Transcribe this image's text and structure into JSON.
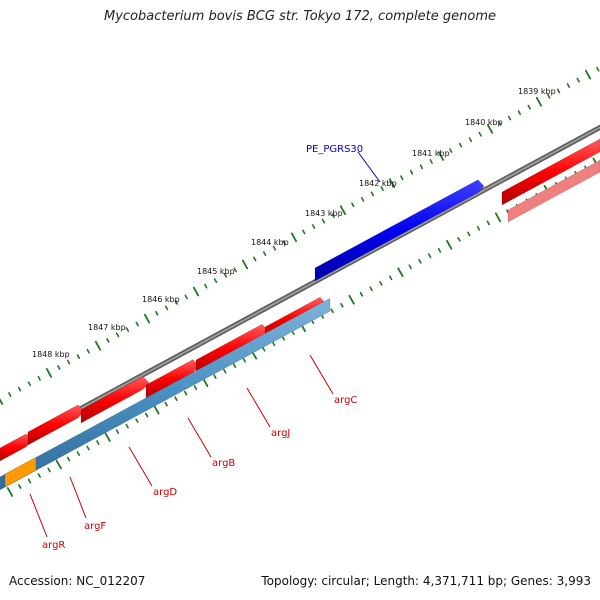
{
  "title": "Mycobacterium bovis BCG str. Tokyo 172, complete genome",
  "footer": {
    "accession": "Accession: NC_012207",
    "summary": "Topology: circular; Length: 4,371,711 bp; Genes: 3,993"
  },
  "ticks": [
    "1839 kbp",
    "1840 kbp",
    "1841 kbp",
    "1842 kbp",
    "1843 kbp",
    "1844 kbp",
    "1845 kbp",
    "1846 kbp",
    "1847 kbp",
    "1848 kbp"
  ],
  "genes": {
    "forward_feature": "PE_PGRS30",
    "reverse_labels": [
      "argC",
      "argJ",
      "argB",
      "argD",
      "argF",
      "argR"
    ]
  },
  "colors": {
    "backbone": "#7a7a7a",
    "cds": "#ff0000",
    "cds_light": "#f08080",
    "pe_pgrs": "#0000ee",
    "operon": "#4a8fc2",
    "orange": "#ff9900",
    "ticks": "#1a7a1a"
  }
}
